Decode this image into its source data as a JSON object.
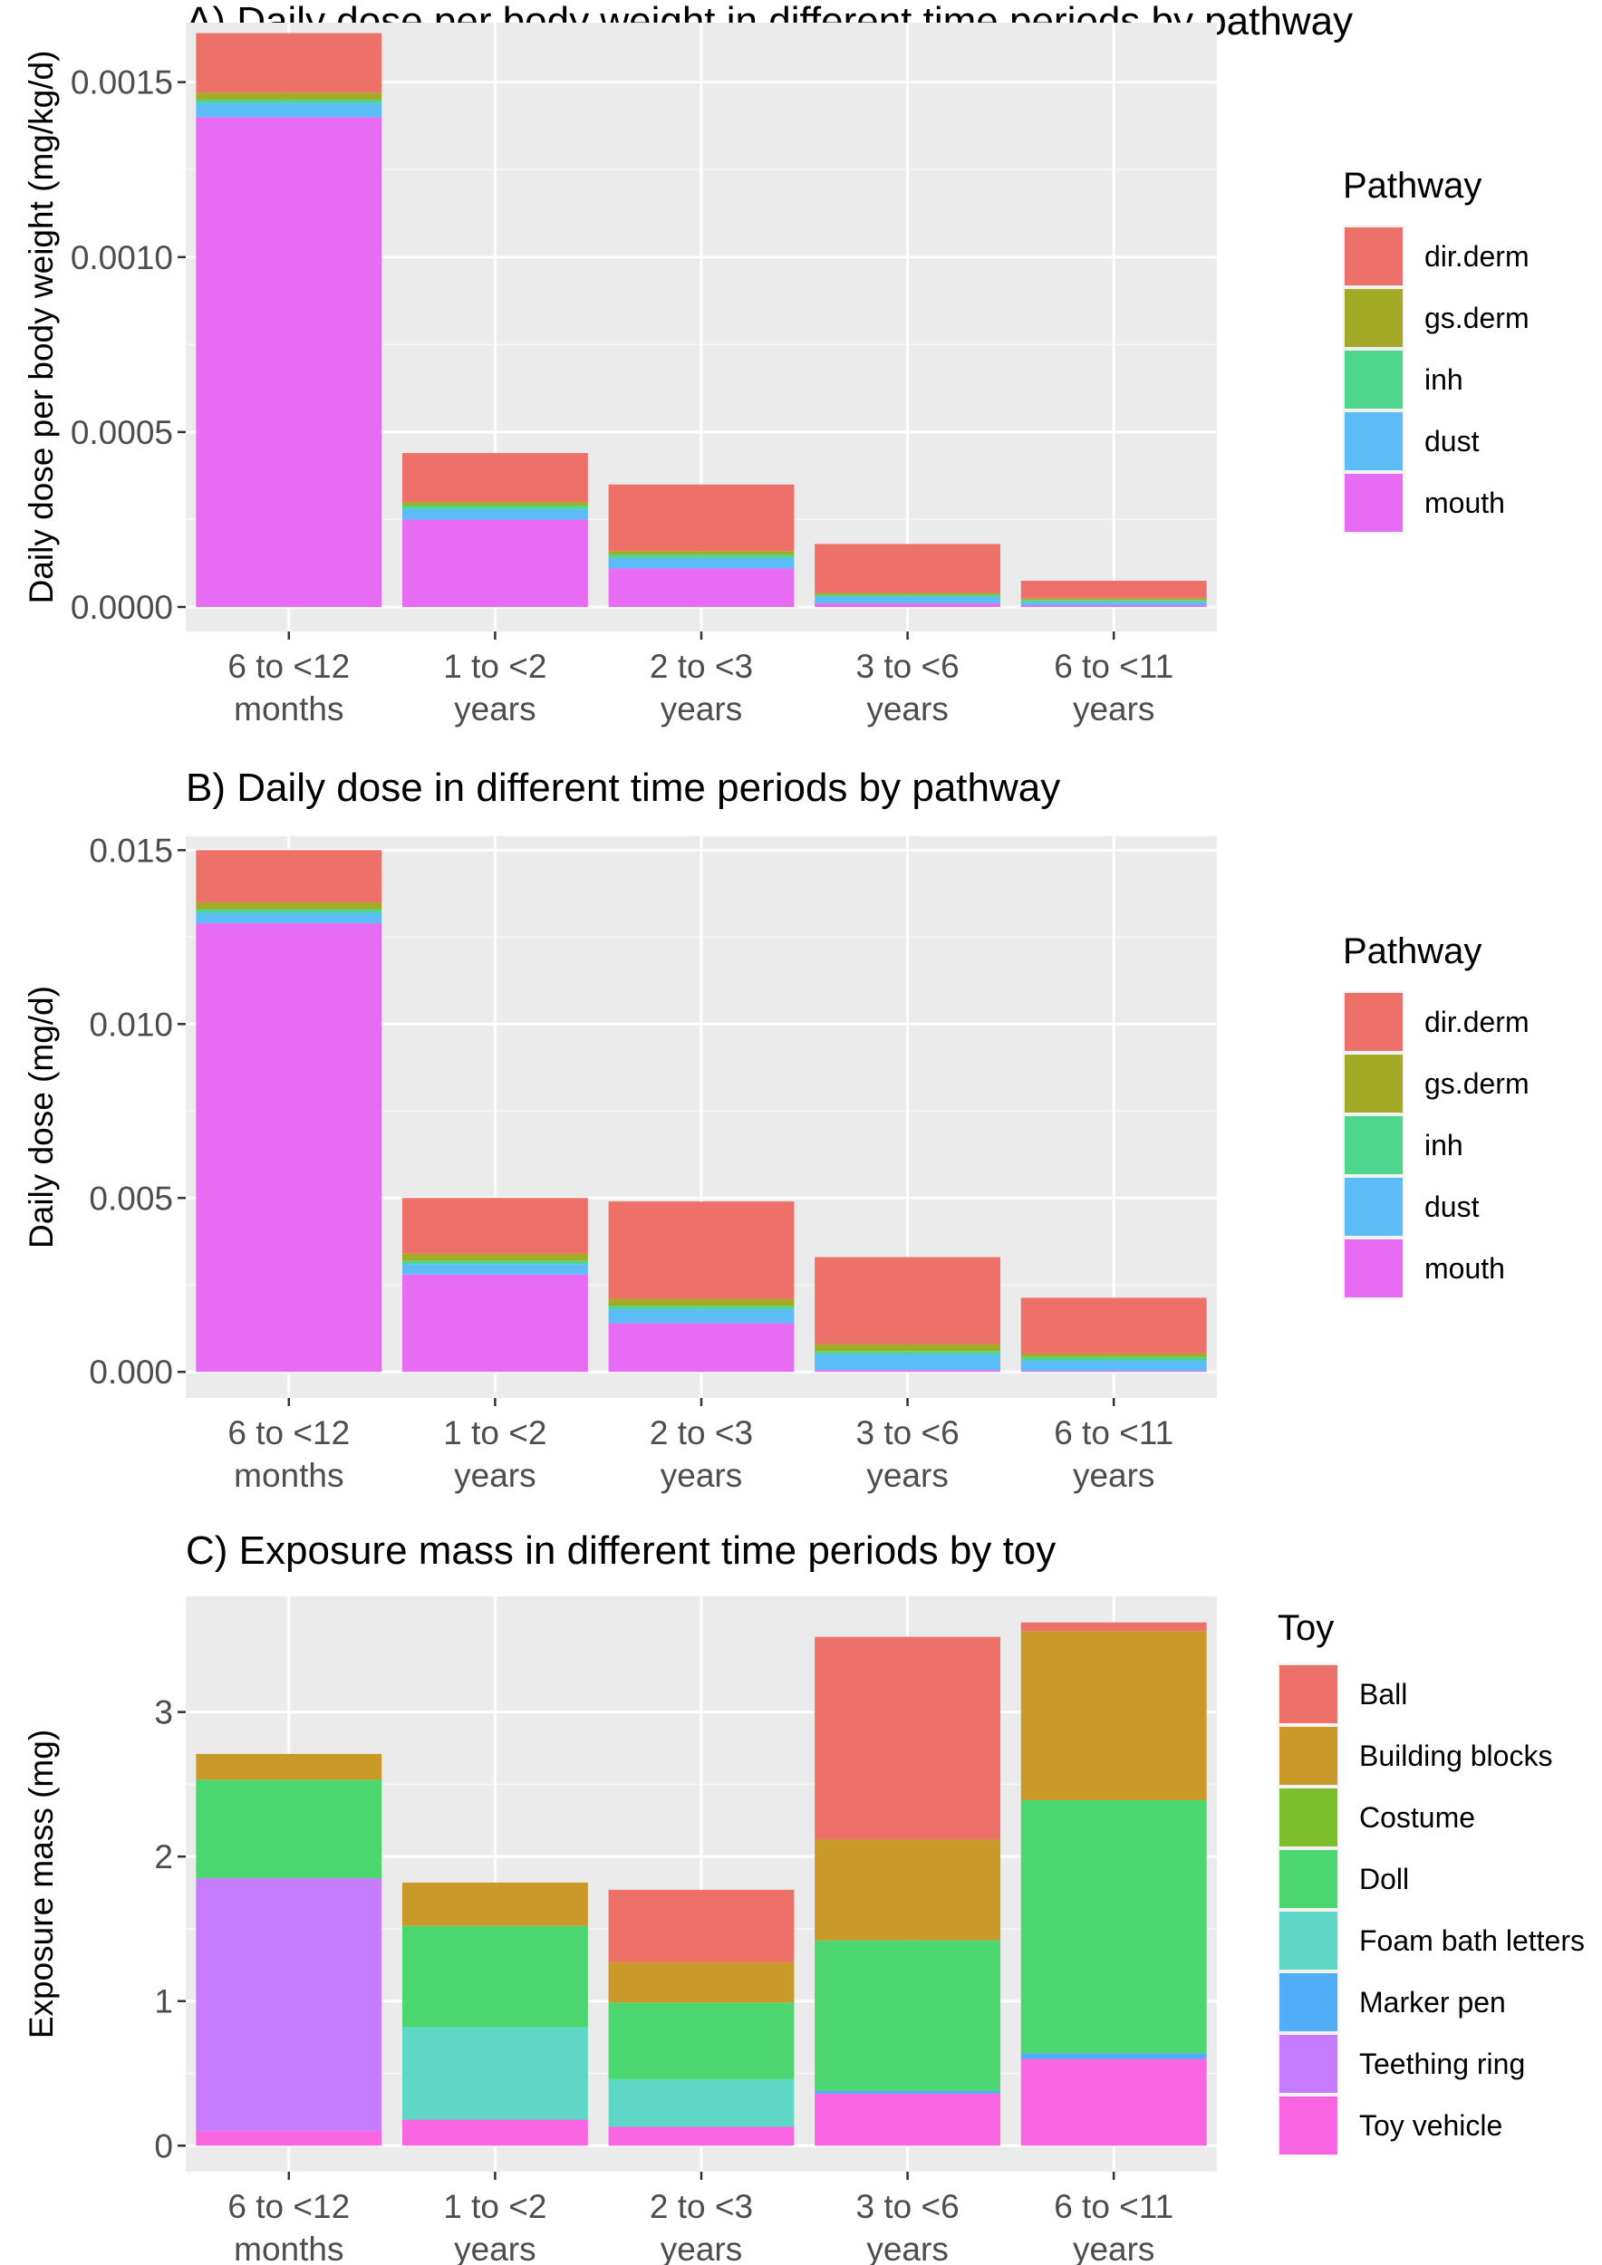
{
  "chart_data": [
    {
      "id": "A",
      "type": "bar",
      "stacked": true,
      "title": "A) Daily dose per body weight in different time periods by pathway",
      "xlabel": "",
      "ylabel": "Daily dose per body weight (mg/kg/d)",
      "ylim": [
        -7e-05,
        0.00167
      ],
      "yticks": [
        0,
        0.0005,
        0.001,
        0.0015
      ],
      "ytick_labels": [
        "0.0000",
        "0.0005",
        "0.0010",
        "0.0015"
      ],
      "categories": [
        {
          "line1": "6 to <12",
          "line2": "months"
        },
        {
          "line1": "1 to <2",
          "line2": "years"
        },
        {
          "line1": "2 to <3",
          "line2": "years"
        },
        {
          "line1": "3 to <6",
          "line2": "years"
        },
        {
          "line1": "6 to <11",
          "line2": "years"
        }
      ],
      "legend_title": "Pathway",
      "series": [
        {
          "name": "mouth",
          "color": "#E76BF3",
          "values": [
            0.0014,
            0.00025,
            0.00011,
            1e-05,
            5e-06
          ]
        },
        {
          "name": "dust",
          "color": "#5BBCF6",
          "values": [
            4e-05,
            3e-05,
            3e-05,
            2e-05,
            1e-05
          ]
        },
        {
          "name": "inh",
          "color": "#4DD68C",
          "values": [
            1e-05,
            1e-05,
            1e-05,
            5e-06,
            5e-06
          ]
        },
        {
          "name": "gs.derm",
          "color": "#A3AA26",
          "values": [
            2e-05,
            1e-05,
            1e-05,
            5e-06,
            5e-06
          ]
        },
        {
          "name": "dir.derm",
          "color": "#ED7168",
          "values": [
            0.00017,
            0.00014,
            0.00019,
            0.00014,
            5e-05
          ]
        }
      ],
      "legend_order": [
        "dir.derm",
        "gs.derm",
        "inh",
        "dust",
        "mouth"
      ]
    },
    {
      "id": "B",
      "type": "bar",
      "stacked": true,
      "title": "B) Daily dose in different time periods by pathway",
      "xlabel": "",
      "ylabel": "Daily dose (mg/d)",
      "ylim": [
        -0.00075,
        0.0154
      ],
      "yticks": [
        0,
        0.005,
        0.01,
        0.015
      ],
      "ytick_labels": [
        "0.000",
        "0.005",
        "0.010",
        "0.015"
      ],
      "categories": [
        {
          "line1": "6 to <12",
          "line2": "months"
        },
        {
          "line1": "1 to <2",
          "line2": "years"
        },
        {
          "line1": "2 to <3",
          "line2": "years"
        },
        {
          "line1": "3 to <6",
          "line2": "years"
        },
        {
          "line1": "6 to <11",
          "line2": "years"
        }
      ],
      "legend_title": "Pathway",
      "series": [
        {
          "name": "mouth",
          "color": "#E76BF3",
          "values": [
            0.0129,
            0.0028,
            0.0014,
            5e-05,
            3e-05
          ]
        },
        {
          "name": "dust",
          "color": "#5BBCF6",
          "values": [
            0.0003,
            0.0003,
            0.0004,
            0.00045,
            0.0003
          ]
        },
        {
          "name": "inh",
          "color": "#4DD68C",
          "values": [
            0.0001,
            0.0001,
            0.0001,
            0.0001,
            0.0001
          ]
        },
        {
          "name": "gs.derm",
          "color": "#A3AA26",
          "values": [
            0.0002,
            0.0002,
            0.0002,
            0.0002,
            0.0001
          ]
        },
        {
          "name": "dir.derm",
          "color": "#ED7168",
          "values": [
            0.0015,
            0.0016,
            0.0028,
            0.0025,
            0.0016
          ]
        }
      ],
      "legend_order": [
        "dir.derm",
        "gs.derm",
        "inh",
        "dust",
        "mouth"
      ]
    },
    {
      "id": "C",
      "type": "bar",
      "stacked": true,
      "title": "C) Exposure mass in different time periods by toy",
      "xlabel": "",
      "ylabel": "Exposure mass (mg)",
      "ylim": [
        -0.18,
        3.8
      ],
      "yticks": [
        0,
        1,
        2,
        3
      ],
      "ytick_labels": [
        "0",
        "1",
        "2",
        "3"
      ],
      "categories": [
        {
          "line1": "6 to <12",
          "line2": "months"
        },
        {
          "line1": "1 to <2",
          "line2": "years"
        },
        {
          "line1": "2 to <3",
          "line2": "years"
        },
        {
          "line1": "3 to <6",
          "line2": "years"
        },
        {
          "line1": "6 to <11",
          "line2": "years"
        }
      ],
      "legend_title": "Toy",
      "series": [
        {
          "name": "Toy vehicle",
          "color": "#F964E0",
          "values": [
            0.1,
            0.18,
            0.13,
            0.36,
            0.6
          ]
        },
        {
          "name": "Teething ring",
          "color": "#C77CFF",
          "values": [
            1.75,
            0.0,
            0.0,
            0.0,
            0.0
          ]
        },
        {
          "name": "Marker pen",
          "color": "#4FAEF6",
          "values": [
            0.0,
            0.0,
            0.0,
            0.02,
            0.04
          ]
        },
        {
          "name": "Foam bath letters",
          "color": "#5ED7C6",
          "values": [
            0.0,
            0.64,
            0.33,
            0.0,
            0.0
          ]
        },
        {
          "name": "Doll",
          "color": "#4CD670",
          "values": [
            0.68,
            0.7,
            0.53,
            1.04,
            1.75
          ]
        },
        {
          "name": "Costume",
          "color": "#7CBE2C",
          "values": [
            0.0,
            0.0,
            0.0,
            0.0,
            0.0
          ]
        },
        {
          "name": "Building blocks",
          "color": "#C99A2A",
          "values": [
            0.18,
            0.3,
            0.28,
            0.7,
            1.17
          ]
        },
        {
          "name": "Ball",
          "color": "#ED7168",
          "values": [
            0.0,
            0.0,
            0.5,
            1.4,
            0.06
          ]
        }
      ],
      "legend_order": [
        "Ball",
        "Building blocks",
        "Costume",
        "Doll",
        "Foam bath letters",
        "Marker pen",
        "Teething ring",
        "Toy vehicle"
      ]
    }
  ]
}
